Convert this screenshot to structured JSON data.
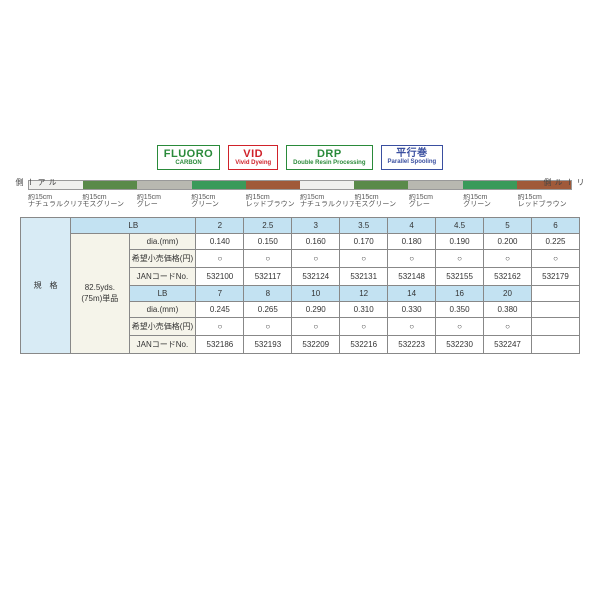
{
  "badges": {
    "fluoro": {
      "big": "FLUORO",
      "sm": "CARBON"
    },
    "vid": {
      "big": "VID",
      "sm": "Vivid Dyeing"
    },
    "drp": {
      "big": "DRP",
      "sm": "Double Resin Processing"
    },
    "parallel": {
      "big": "平行巻",
      "sm": "Parallel Spooling"
    }
  },
  "side_labels": {
    "left": "ルアー側",
    "right": "リール側"
  },
  "segments": [
    {
      "len": "約15cm",
      "name": "ナチュラルクリア",
      "color": "#f0f0ee"
    },
    {
      "len": "約15cm",
      "name": "モスグリーン",
      "color": "#5a8a4a"
    },
    {
      "len": "約15cm",
      "name": "グレー",
      "color": "#b8b8b0"
    },
    {
      "len": "約15cm",
      "name": "グリーン",
      "color": "#3a9a5a"
    },
    {
      "len": "約15cm",
      "name": "レッドブラウン",
      "color": "#a05a3a"
    },
    {
      "len": "約15cm",
      "name": "ナチュラルクリア",
      "color": "#f0f0ee"
    },
    {
      "len": "約15cm",
      "name": "モスグリーン",
      "color": "#5a8a4a"
    },
    {
      "len": "約15cm",
      "name": "グレー",
      "color": "#b8b8b0"
    },
    {
      "len": "約15cm",
      "name": "グリーン",
      "color": "#3a9a5a"
    },
    {
      "len": "約15cm",
      "name": "レッドブラウン",
      "color": "#a05a3a"
    }
  ],
  "table": {
    "spec_header": "規　格",
    "lb_header": "LB",
    "side_label_1": "82.5yds.",
    "side_label_2": "(75m)単品",
    "row_dia": "dia.(mm)",
    "row_price": "希望小売価格(円)",
    "row_jan": "JANコードNo.",
    "lb1": [
      "2",
      "2.5",
      "3",
      "3.5",
      "4",
      "4.5",
      "5",
      "6"
    ],
    "dia1": [
      "0.140",
      "0.150",
      "0.160",
      "0.170",
      "0.180",
      "0.190",
      "0.200",
      "0.225"
    ],
    "price1": [
      "○",
      "○",
      "○",
      "○",
      "○",
      "○",
      "○",
      "○"
    ],
    "jan1": [
      "532100",
      "532117",
      "532124",
      "532131",
      "532148",
      "532155",
      "532162",
      "532179"
    ],
    "lb2": [
      "7",
      "8",
      "10",
      "12",
      "14",
      "16",
      "20"
    ],
    "dia2": [
      "0.245",
      "0.265",
      "0.290",
      "0.310",
      "0.330",
      "0.350",
      "0.380"
    ],
    "price2": [
      "○",
      "○",
      "○",
      "○",
      "○",
      "○",
      "○"
    ],
    "jan2": [
      "532186",
      "532193",
      "532209",
      "532216",
      "532223",
      "532230",
      "532247"
    ]
  }
}
